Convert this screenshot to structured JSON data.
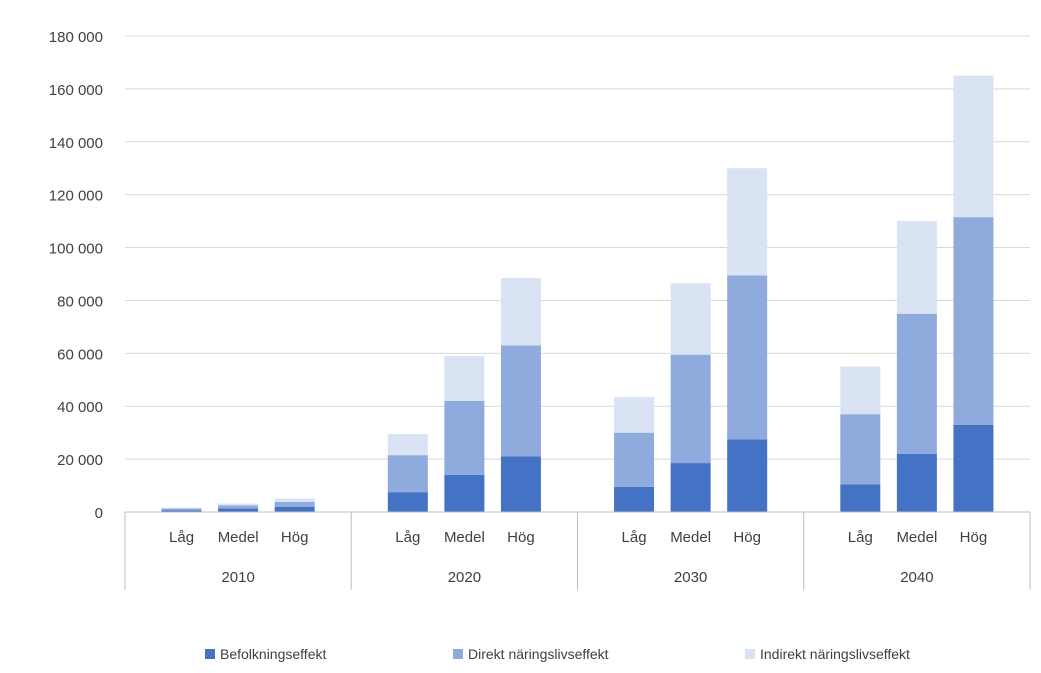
{
  "chart_data": {
    "type": "bar",
    "stacked": true,
    "title": "",
    "xlabel": "",
    "ylabel": "",
    "ylim": [
      0,
      180000
    ],
    "yticks": [
      0,
      20000,
      40000,
      60000,
      80000,
      100000,
      120000,
      140000,
      160000,
      180000
    ],
    "ytick_labels": [
      "0",
      "20 000",
      "40 000",
      "60 000",
      "80 000",
      "100 000",
      "120 000",
      "140 000",
      "160 000",
      "180 000"
    ],
    "grid": true,
    "legend_position": "bottom",
    "groups": [
      "2010",
      "2020",
      "2030",
      "2040"
    ],
    "subcategories": [
      "Låg",
      "Medel",
      "Hög"
    ],
    "series": [
      {
        "name": "Befolkningseffekt",
        "color": "#4472c4",
        "values": [
          [
            700,
            1300,
            2000
          ],
          [
            7500,
            14000,
            21000
          ],
          [
            9500,
            18500,
            27500
          ],
          [
            10500,
            22000,
            33000
          ]
        ]
      },
      {
        "name": "Direkt näringslivseffekt",
        "color": "#8faadc",
        "values": [
          [
            600,
            1200,
            1800
          ],
          [
            14000,
            28000,
            42000
          ],
          [
            20500,
            41000,
            62000
          ],
          [
            26500,
            53000,
            78500
          ]
        ]
      },
      {
        "name": "Indirekt näringslivseffekt",
        "color": "#dae3f3",
        "values": [
          [
            300,
            700,
            1300
          ],
          [
            8000,
            17000,
            25500
          ],
          [
            13500,
            27000,
            40500
          ],
          [
            18000,
            35000,
            53500
          ]
        ]
      }
    ]
  }
}
